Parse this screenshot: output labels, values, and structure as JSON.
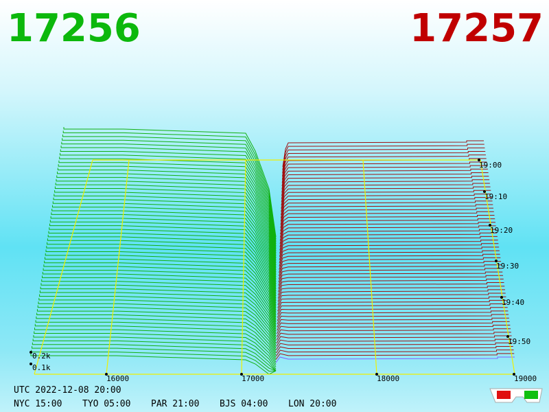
{
  "header": {
    "bid": "17256",
    "ask": "17257"
  },
  "price_axis": {
    "ticks": [
      "16000",
      "17000",
      "18000",
      "19000"
    ]
  },
  "depth_axis": {
    "ticks": [
      "0.2k",
      "0.1k"
    ]
  },
  "time_axis": {
    "ticks": [
      "19:00",
      "19:10",
      "19:20",
      "19:30",
      "19:40",
      "19:50"
    ]
  },
  "footer": {
    "utc": "UTC 2022-12-08 20:00",
    "clocks": [
      "NYC 15:00",
      "TYO 05:00",
      "PAR 21:00",
      "BJS 04:00",
      "LON 20:00"
    ]
  }
}
